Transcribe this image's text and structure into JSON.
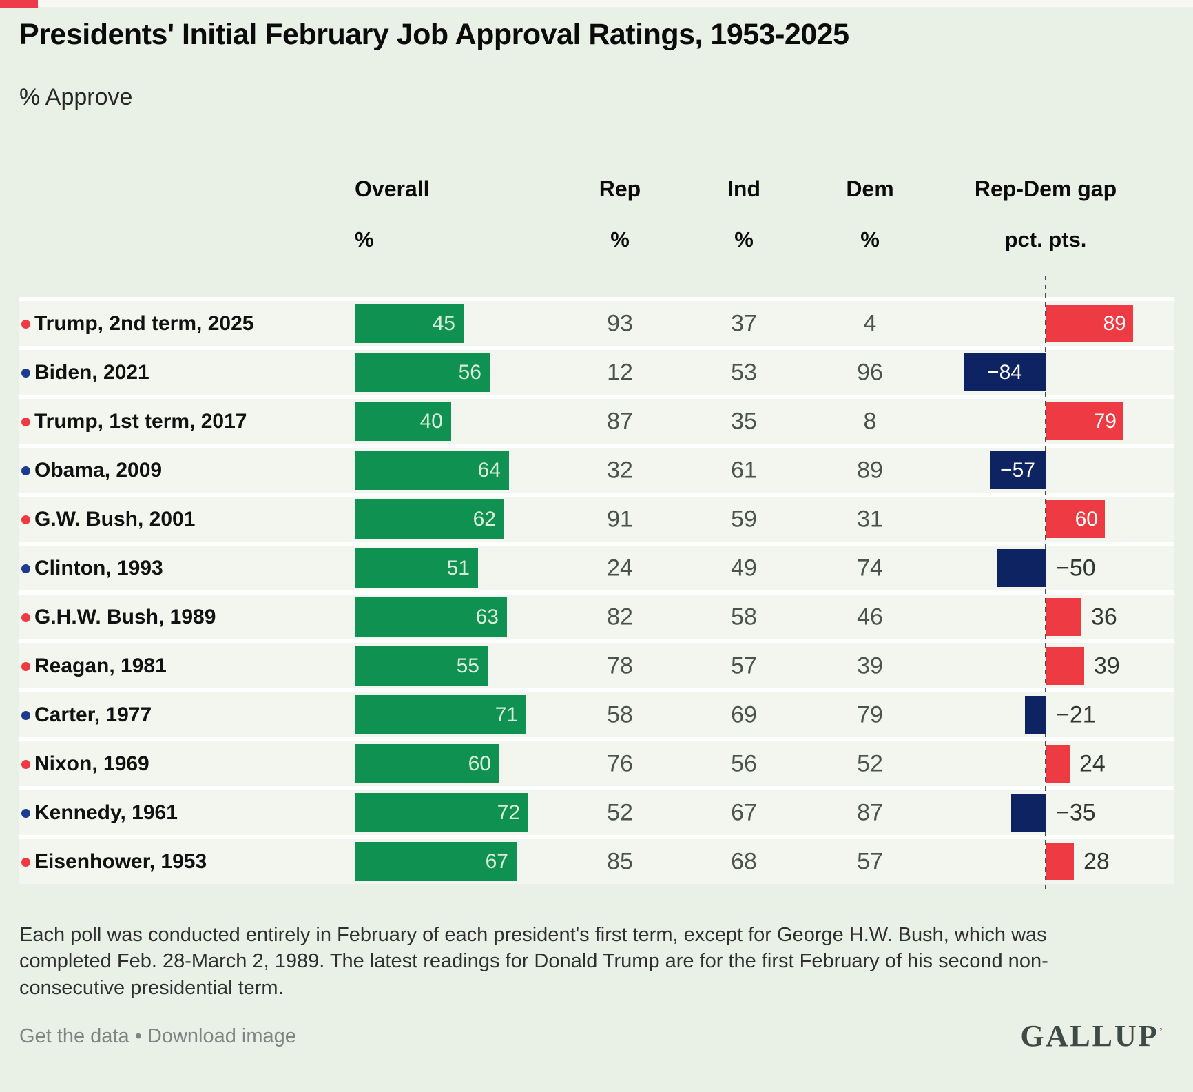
{
  "page": {
    "title": "Presidents' Initial February Job Approval Ratings, 1953-2025",
    "subtitle": "% Approve"
  },
  "columns": {
    "overall": "Overall",
    "rep": "Rep",
    "ind": "Ind",
    "dem": "Dem",
    "gap": "Rep-Dem gap",
    "pct_unit": "%",
    "gap_unit": "pct. pts."
  },
  "rows": [
    {
      "label": "Trump, 2nd term, 2025",
      "party": "R",
      "overall": 45,
      "rep": 93,
      "ind": 37,
      "dem": 4,
      "gap": 89,
      "gap_label": "89",
      "gap_inside": true
    },
    {
      "label": "Biden, 2021",
      "party": "D",
      "overall": 56,
      "rep": 12,
      "ind": 53,
      "dem": 96,
      "gap": -84,
      "gap_label": "−84",
      "gap_inside": true
    },
    {
      "label": "Trump, 1st term, 2017",
      "party": "R",
      "overall": 40,
      "rep": 87,
      "ind": 35,
      "dem": 8,
      "gap": 79,
      "gap_label": "79",
      "gap_inside": true
    },
    {
      "label": "Obama, 2009",
      "party": "D",
      "overall": 64,
      "rep": 32,
      "ind": 61,
      "dem": 89,
      "gap": -57,
      "gap_label": "−57",
      "gap_inside": true
    },
    {
      "label": "G.W. Bush, 2001",
      "party": "R",
      "overall": 62,
      "rep": 91,
      "ind": 59,
      "dem": 31,
      "gap": 60,
      "gap_label": "60",
      "gap_inside": true
    },
    {
      "label": "Clinton, 1993",
      "party": "D",
      "overall": 51,
      "rep": 24,
      "ind": 49,
      "dem": 74,
      "gap": -50,
      "gap_label": "−50",
      "gap_inside": false
    },
    {
      "label": "G.H.W. Bush, 1989",
      "party": "R",
      "overall": 63,
      "rep": 82,
      "ind": 58,
      "dem": 46,
      "gap": 36,
      "gap_label": "36",
      "gap_inside": false
    },
    {
      "label": "Reagan, 1981",
      "party": "R",
      "overall": 55,
      "rep": 78,
      "ind": 57,
      "dem": 39,
      "gap": 39,
      "gap_label": "39",
      "gap_inside": false
    },
    {
      "label": "Carter, 1977",
      "party": "D",
      "overall": 71,
      "rep": 58,
      "ind": 69,
      "dem": 79,
      "gap": -21,
      "gap_label": "−21",
      "gap_inside": false
    },
    {
      "label": "Nixon, 1969",
      "party": "R",
      "overall": 60,
      "rep": 76,
      "ind": 56,
      "dem": 52,
      "gap": 24,
      "gap_label": "24",
      "gap_inside": false
    },
    {
      "label": "Kennedy, 1961",
      "party": "D",
      "overall": 72,
      "rep": 52,
      "ind": 67,
      "dem": 87,
      "gap": -35,
      "gap_label": "−35",
      "gap_inside": false
    },
    {
      "label": "Eisenhower, 1953",
      "party": "R",
      "overall": 67,
      "rep": 85,
      "ind": 68,
      "dem": 57,
      "gap": 28,
      "gap_label": "28",
      "gap_inside": false
    }
  ],
  "footnote": "Each poll was conducted entirely in February of each president's first term, except for George H.W. Bush, which was\ncompleted Feb. 28-March 2, 1989. The latest readings for Donald Trump are for the first February of his second non-\nconsecutive presidential term.",
  "footer": {
    "link_get_data": "Get the data",
    "separator": "•",
    "link_download": "Download image",
    "brand": "GALLUP",
    "trademark": "ʼ"
  },
  "colors": {
    "green": "#0f9251",
    "red": "#ee3b43",
    "navy": "#0e2462",
    "rep_dot": "#ee3b43",
    "dem_dot": "#1e3c8f",
    "row_bg": "#f2f6ee",
    "page_bg": "#e9f0e5"
  },
  "chart_data": {
    "type": "bar",
    "orientation": "horizontal",
    "title": "Presidents' Initial February Job Approval Ratings, 1953-2025",
    "subtitle": "% Approve",
    "categories": [
      "Trump, 2nd term, 2025",
      "Biden, 2021",
      "Trump, 1st term, 2017",
      "Obama, 2009",
      "G.W. Bush, 2001",
      "Clinton, 1993",
      "G.H.W. Bush, 1989",
      "Reagan, 1981",
      "Carter, 1977",
      "Nixon, 1969",
      "Kennedy, 1961",
      "Eisenhower, 1953"
    ],
    "series": [
      {
        "name": "Overall %",
        "values": [
          45,
          56,
          40,
          64,
          62,
          51,
          63,
          55,
          71,
          60,
          72,
          67
        ]
      },
      {
        "name": "Rep %",
        "values": [
          93,
          12,
          87,
          32,
          91,
          24,
          82,
          78,
          58,
          76,
          52,
          85
        ]
      },
      {
        "name": "Ind %",
        "values": [
          37,
          53,
          35,
          61,
          59,
          49,
          58,
          57,
          69,
          56,
          67,
          68
        ]
      },
      {
        "name": "Dem %",
        "values": [
          4,
          96,
          8,
          89,
          31,
          74,
          46,
          39,
          79,
          52,
          87,
          57
        ]
      },
      {
        "name": "Rep-Dem gap pct. pts.",
        "values": [
          89,
          -84,
          79,
          -57,
          60,
          -50,
          36,
          39,
          -21,
          24,
          -35,
          28
        ]
      }
    ],
    "axis_range_overall": [
      0,
      100
    ],
    "grid": false,
    "legend_position": "none",
    "notes": "Overall shown as green bars with value labels; Rep-Dem gap shown as diverging bars (red positive, navy negative) around a dashed zero line; party of each president indicated by red/navy dot."
  }
}
